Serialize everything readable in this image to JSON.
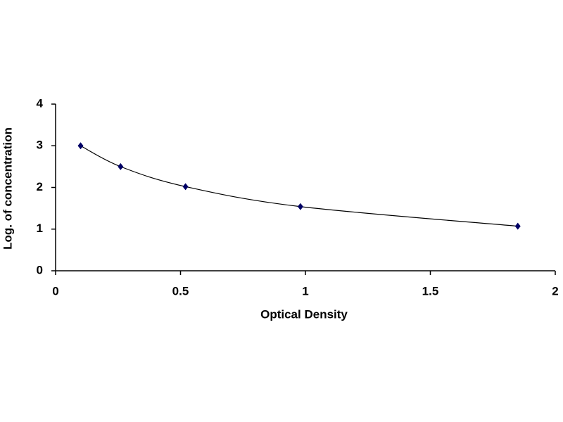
{
  "chart_data": {
    "type": "scatter",
    "x": [
      0.1,
      0.26,
      0.52,
      0.98,
      1.85
    ],
    "values": [
      3.0,
      2.5,
      2.02,
      1.54,
      1.07
    ],
    "color": "#000066",
    "line_color": "#000000",
    "smooth": true,
    "xlabel": "Optical Density",
    "ylabel": "Log. of concentration",
    "xlim": [
      0,
      2
    ],
    "xticks": [
      0,
      0.5,
      1,
      1.5,
      2
    ],
    "ylim": [
      0,
      4
    ],
    "yticks": [
      0,
      1,
      2,
      3,
      4
    ],
    "grid": false
  }
}
